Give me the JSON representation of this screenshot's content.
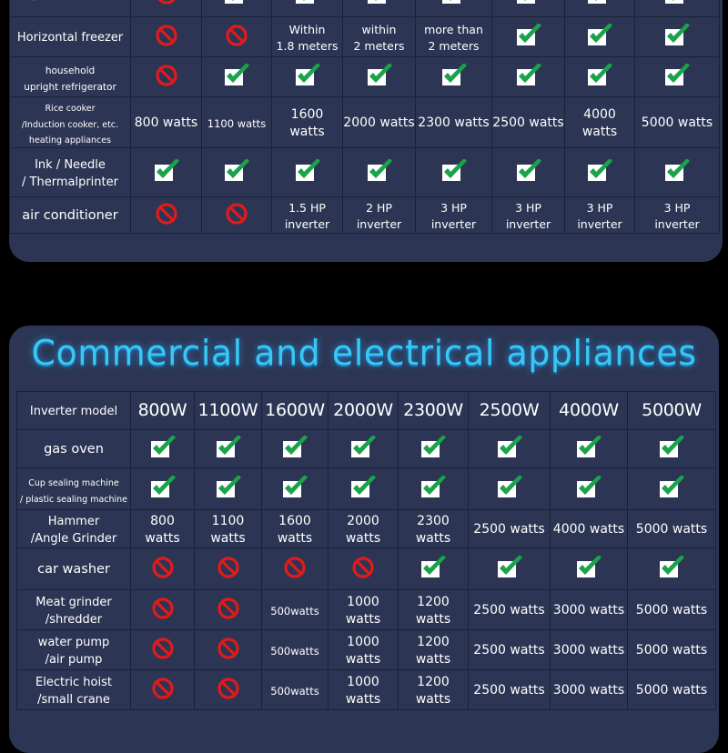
{
  "colors": {
    "panel": "#2c3654",
    "title": "#38c8f4",
    "check_fill": "#ffffff",
    "check_mark": "#1aa34a",
    "prohibit": "#e21a1a"
  },
  "top_table": {
    "rows": [
      {
        "label": "/Subwoofer",
        "cells": [
          "prohibited-icon",
          "check-icon",
          "check-icon",
          "check-icon",
          "check-icon",
          "check-icon",
          "check-icon",
          "check-icon"
        ]
      },
      {
        "label": "Horizontal freezer",
        "cells": [
          "prohibited-icon",
          "prohibited-icon",
          "Within\n1.8 meters",
          "within\n2 meters",
          "more than\n2 meters",
          "check-icon",
          "check-icon",
          "check-icon"
        ]
      },
      {
        "label": "household\nupright refrigerator",
        "cells": [
          "prohibited-icon",
          "check-icon",
          "check-icon",
          "check-icon",
          "check-icon",
          "check-icon",
          "check-icon",
          "check-icon"
        ]
      },
      {
        "label": "Rice cooker\n/Induction cooker, etc.\nheating appliances",
        "cells": [
          "800 watts",
          "1100 watts",
          "1600 watts",
          "2000 watts",
          "2300 watts",
          "2500 watts",
          "4000 watts",
          "5000 watts"
        ]
      },
      {
        "label": "Ink / Needle\n/ Thermalprinter",
        "cells": [
          "check-icon",
          "check-icon",
          "check-icon",
          "check-icon",
          "check-icon",
          "check-icon",
          "check-icon",
          "check-icon"
        ]
      },
      {
        "label": "air conditioner",
        "cells": [
          "prohibited-icon",
          "prohibited-icon",
          "1.5 HP\ninverter",
          "2 HP\ninverter",
          "3 HP\ninverter",
          "3 HP\ninverter",
          "3 HP\ninverter",
          "3 HP\ninverter"
        ]
      }
    ]
  },
  "bottom_section": {
    "title": "Commercial and electrical appliances",
    "header": {
      "label": "Inverter model",
      "models": [
        "800W",
        "1100W",
        "1600W",
        "2000W",
        "2300W",
        "2500W",
        "4000W",
        "5000W"
      ]
    },
    "rows": [
      {
        "label": "gas oven",
        "cells": [
          "check-icon",
          "check-icon",
          "check-icon",
          "check-icon",
          "check-icon",
          "check-icon",
          "check-icon",
          "check-icon"
        ]
      },
      {
        "label": "Cup sealing machine\n/ plastic sealing machine",
        "cells": [
          "check-icon",
          "check-icon",
          "check-icon",
          "check-icon",
          "check-icon",
          "check-icon",
          "check-icon",
          "check-icon"
        ]
      },
      {
        "label": "Hammer\n/Angle Grinder",
        "cells": [
          "800 watts",
          "1100 watts",
          "1600 watts",
          "2000 watts",
          "2300 watts",
          "2500 watts",
          "4000 watts",
          "5000 watts"
        ]
      },
      {
        "label": "car washer",
        "cells": [
          "prohibited-icon",
          "prohibited-icon",
          "prohibited-icon",
          "prohibited-icon",
          "check-icon",
          "check-icon",
          "check-icon",
          "check-icon"
        ]
      },
      {
        "label": "Meat grinder\n/shredder",
        "cells": [
          "prohibited-icon",
          "prohibited-icon",
          "500watts",
          "1000 watts",
          "1200 watts",
          "2500 watts",
          "3000 watts",
          "5000 watts"
        ]
      },
      {
        "label": "water pump\n/air pump",
        "cells": [
          "prohibited-icon",
          "prohibited-icon",
          "500watts",
          "1000 watts",
          "1200 watts",
          "2500 watts",
          "3000 watts",
          "5000 watts"
        ]
      },
      {
        "label": "Electric hoist\n/small crane",
        "cells": [
          "prohibited-icon",
          "prohibited-icon",
          "500watts",
          "1000 watts",
          "1200 watts",
          "2500 watts",
          "3000 watts",
          "5000 watts"
        ]
      }
    ]
  }
}
